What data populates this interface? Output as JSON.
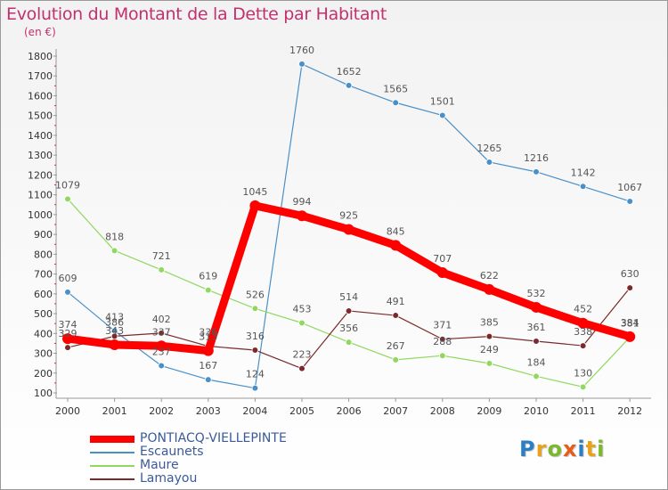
{
  "header": {
    "title": "Evolution du Montant de la Dette par Habitant",
    "unit": "(en €)"
  },
  "logo": {
    "text": "Proxiti",
    "letters": [
      {
        "ch": "P",
        "color": "#2d7fc3"
      },
      {
        "ch": "r",
        "color": "#e8a21b"
      },
      {
        "ch": "o",
        "color": "#7cb82f"
      },
      {
        "ch": "x",
        "color": "#e85b18"
      },
      {
        "ch": "i",
        "color": "#2d7fc3"
      },
      {
        "ch": "t",
        "color": "#e8a21b"
      },
      {
        "ch": "i",
        "color": "#7cb82f"
      }
    ]
  },
  "chart_data": {
    "type": "line",
    "title": "Evolution du Montant de la Dette par Habitant",
    "ylabel": "(en €)",
    "xlabel": "",
    "x": [
      "2000",
      "2001",
      "2002",
      "2003",
      "2004",
      "2005",
      "2006",
      "2007",
      "2008",
      "2009",
      "2010",
      "2011",
      "2012"
    ],
    "ylim": [
      100,
      1800
    ],
    "yticks": [
      100,
      200,
      300,
      400,
      500,
      600,
      700,
      800,
      900,
      1000,
      1100,
      1200,
      1300,
      1400,
      1500,
      1600,
      1700,
      1800
    ],
    "grid": false,
    "legend_position": "bottom-left",
    "series": [
      {
        "name": "PONTIACQ-VIELLEPINTE",
        "color": "#ff0000",
        "style": "thick",
        "values": [
          374,
          343,
          337,
          313,
          1045,
          994,
          925,
          845,
          707,
          622,
          532,
          452,
          384
        ]
      },
      {
        "name": "Escaunets",
        "color": "#4a90c8",
        "style": "thin",
        "values": [
          609,
          413,
          237,
          167,
          124,
          1760,
          1652,
          1565,
          1501,
          1265,
          1216,
          1142,
          1067
        ]
      },
      {
        "name": "Maure",
        "color": "#90d860",
        "style": "thin",
        "values": [
          1079,
          818,
          721,
          619,
          526,
          453,
          356,
          267,
          288,
          249,
          184,
          130,
          381
        ]
      },
      {
        "name": "Lamayou",
        "color": "#7a2a2a",
        "style": "thin",
        "values": [
          329,
          386,
          402,
          336,
          316,
          223,
          514,
          491,
          371,
          385,
          361,
          338,
          630
        ]
      }
    ]
  }
}
